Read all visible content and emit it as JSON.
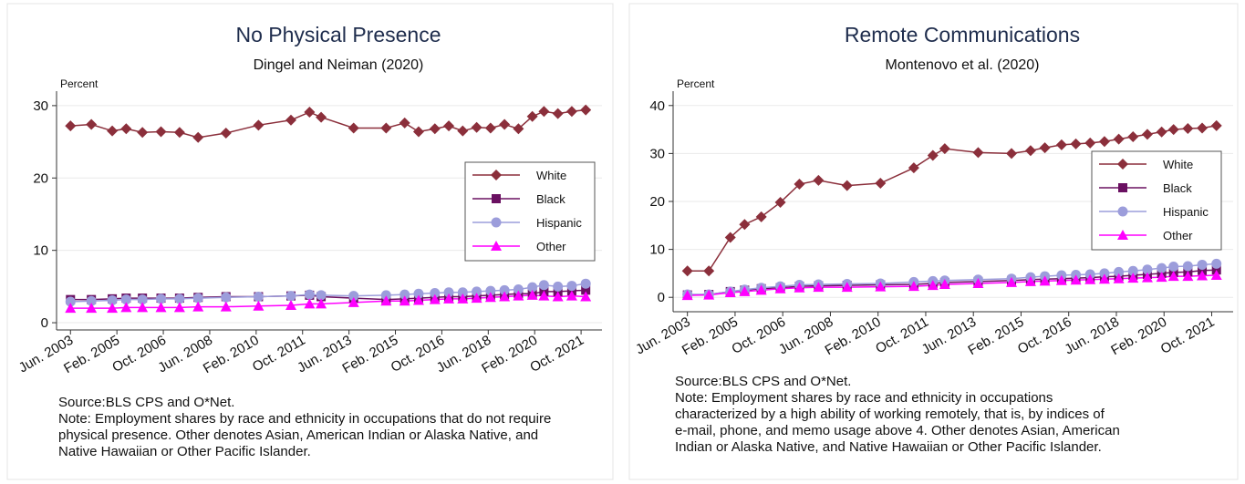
{
  "chart_data": [
    {
      "type": "line",
      "title": "No Physical Presence",
      "subtitle": "Dingel and Neiman (2020)",
      "ylabel": "Percent",
      "x": [
        "2003-06",
        "2004-03",
        "2004-12",
        "2005-06",
        "2006-01",
        "2006-09",
        "2007-05",
        "2008-01",
        "2009-01",
        "2010-03",
        "2011-05",
        "2012-01",
        "2012-06",
        "2013-08",
        "2014-10",
        "2015-06",
        "2015-12",
        "2016-07",
        "2017-01",
        "2017-07",
        "2018-01",
        "2018-07",
        "2019-01",
        "2019-07",
        "2020-01",
        "2020-06",
        "2020-12",
        "2021-06",
        "2021-12"
      ],
      "xlim": [
        "2002-12",
        "2022-07"
      ],
      "xticks": [
        {
          "value": "2003-06",
          "label": "Jun. 2003"
        },
        {
          "value": "2005-02",
          "label": "Feb. 2005"
        },
        {
          "value": "2006-10",
          "label": "Oct. 2006"
        },
        {
          "value": "2008-06",
          "label": "Jun. 2008"
        },
        {
          "value": "2010-02",
          "label": "Feb. 2010"
        },
        {
          "value": "2011-10",
          "label": "Oct. 2011"
        },
        {
          "value": "2013-06",
          "label": "Jun. 2013"
        },
        {
          "value": "2015-02",
          "label": "Feb. 2015"
        },
        {
          "value": "2016-10",
          "label": "Oct. 2016"
        },
        {
          "value": "2018-06",
          "label": "Jun. 2018"
        },
        {
          "value": "2020-02",
          "label": "Feb. 2020"
        },
        {
          "value": "2021-10",
          "label": "Oct. 2021"
        }
      ],
      "ylim": [
        -1,
        32
      ],
      "yticks": [
        0,
        10,
        20,
        30
      ],
      "grid": true,
      "legend": "right",
      "series": [
        {
          "name": "White",
          "color": "#8b2f3b",
          "marker": "diamond",
          "values": [
            27.2,
            27.4,
            26.5,
            26.8,
            26.3,
            26.4,
            26.3,
            25.6,
            26.2,
            27.3,
            28.0,
            29.1,
            28.4,
            26.9,
            26.9,
            27.6,
            26.4,
            26.8,
            27.2,
            26.5,
            27.0,
            26.9,
            27.4,
            26.8,
            28.5,
            29.2,
            28.9,
            29.2,
            29.4
          ]
        },
        {
          "name": "Black",
          "color": "#6a1061",
          "marker": "square",
          "values": [
            3.2,
            3.2,
            3.3,
            3.4,
            3.4,
            3.4,
            3.4,
            3.5,
            3.6,
            3.6,
            3.7,
            3.8,
            3.6,
            3.4,
            3.2,
            3.3,
            3.4,
            3.5,
            3.6,
            3.6,
            3.7,
            3.8,
            3.9,
            4.0,
            4.0,
            4.3,
            4.3,
            4.4,
            4.5
          ]
        },
        {
          "name": "Hispanic",
          "color": "#9c9ddb",
          "marker": "circle",
          "values": [
            2.9,
            3.0,
            3.1,
            3.2,
            3.2,
            3.3,
            3.3,
            3.4,
            3.5,
            3.6,
            3.7,
            3.9,
            3.8,
            3.7,
            3.8,
            3.9,
            4.0,
            4.1,
            4.2,
            4.2,
            4.3,
            4.4,
            4.5,
            4.6,
            4.9,
            5.2,
            5.0,
            5.1,
            5.4
          ]
        },
        {
          "name": "Other",
          "color": "#ff00ff",
          "marker": "triangle",
          "values": [
            2.0,
            2.0,
            2.0,
            2.1,
            2.1,
            2.1,
            2.1,
            2.2,
            2.2,
            2.3,
            2.4,
            2.6,
            2.6,
            2.8,
            3.0,
            3.0,
            3.1,
            3.2,
            3.3,
            3.3,
            3.4,
            3.5,
            3.6,
            3.7,
            3.8,
            3.7,
            3.6,
            3.7,
            3.6
          ]
        }
      ],
      "source": "Source:BLS CPS and O*Net.",
      "note": [
        "Note: Employment shares by race and ethnicity in occupations that do not require",
        "physical presence. Other denotes Asian, American Indian or Alaska Native, and",
        "Native Hawaiian or Other Pacific Islander."
      ]
    },
    {
      "type": "line",
      "title": "Remote Communications",
      "subtitle": "Montenovo et al. (2020)",
      "ylabel": "Percent",
      "x": [
        "2003-06",
        "2004-03",
        "2004-12",
        "2005-06",
        "2006-01",
        "2006-09",
        "2007-05",
        "2008-01",
        "2009-01",
        "2010-03",
        "2011-05",
        "2012-01",
        "2012-06",
        "2013-08",
        "2014-10",
        "2015-06",
        "2015-12",
        "2016-07",
        "2017-01",
        "2017-07",
        "2018-01",
        "2018-07",
        "2019-01",
        "2019-07",
        "2020-01",
        "2020-06",
        "2020-12",
        "2021-06",
        "2021-12"
      ],
      "xlim": [
        "2002-12",
        "2022-07"
      ],
      "xticks": [
        {
          "value": "2003-06",
          "label": "Jun. 2003"
        },
        {
          "value": "2005-02",
          "label": "Feb. 2005"
        },
        {
          "value": "2006-10",
          "label": "Oct. 2006"
        },
        {
          "value": "2008-06",
          "label": "Jun. 2008"
        },
        {
          "value": "2010-02",
          "label": "Feb. 2010"
        },
        {
          "value": "2011-10",
          "label": "Oct. 2011"
        },
        {
          "value": "2013-06",
          "label": "Jun. 2013"
        },
        {
          "value": "2015-02",
          "label": "Feb. 2015"
        },
        {
          "value": "2016-10",
          "label": "Oct. 2016"
        },
        {
          "value": "2018-06",
          "label": "Jun. 2018"
        },
        {
          "value": "2020-02",
          "label": "Feb. 2020"
        },
        {
          "value": "2021-10",
          "label": "Oct. 2021"
        }
      ],
      "ylim": [
        -3,
        43
      ],
      "yticks": [
        0,
        10,
        20,
        30,
        40
      ],
      "grid": true,
      "legend": "right",
      "series": [
        {
          "name": "White",
          "color": "#8b2f3b",
          "marker": "diamond",
          "values": [
            5.5,
            5.5,
            12.5,
            15.2,
            16.8,
            19.8,
            23.6,
            24.4,
            23.3,
            23.8,
            27.0,
            29.6,
            31.0,
            30.2,
            30.0,
            30.6,
            31.2,
            31.8,
            32.0,
            32.2,
            32.5,
            33.0,
            33.5,
            34.0,
            34.5,
            35.0,
            35.2,
            35.3,
            35.8
          ]
        },
        {
          "name": "Black",
          "color": "#6a1061",
          "marker": "square",
          "values": [
            0.5,
            0.6,
            1.2,
            1.5,
            1.8,
            2.0,
            2.3,
            2.4,
            2.5,
            2.6,
            2.7,
            2.9,
            3.1,
            3.3,
            3.5,
            3.7,
            3.8,
            3.9,
            4.0,
            4.1,
            4.3,
            4.4,
            4.6,
            4.8,
            5.0,
            5.2,
            5.3,
            5.6,
            5.7
          ]
        },
        {
          "name": "Hispanic",
          "color": "#9c9ddb",
          "marker": "circle",
          "values": [
            0.6,
            0.6,
            1.2,
            1.6,
            2.0,
            2.3,
            2.6,
            2.7,
            2.8,
            2.9,
            3.2,
            3.4,
            3.5,
            3.7,
            3.9,
            4.2,
            4.4,
            4.6,
            4.7,
            4.8,
            5.0,
            5.3,
            5.5,
            5.8,
            6.1,
            6.4,
            6.5,
            6.8,
            7.0
          ]
        },
        {
          "name": "Other",
          "color": "#ff00ff",
          "marker": "triangle",
          "values": [
            0.4,
            0.5,
            1.0,
            1.2,
            1.5,
            1.8,
            2.0,
            2.1,
            2.1,
            2.2,
            2.3,
            2.5,
            2.7,
            2.9,
            3.1,
            3.3,
            3.4,
            3.5,
            3.6,
            3.7,
            3.8,
            3.9,
            4.0,
            4.1,
            4.2,
            4.4,
            4.4,
            4.5,
            4.6
          ]
        }
      ],
      "source": "Source:BLS CPS and O*Net.",
      "note": [
        "Note: Employment shares by race and ethnicity in occupations",
        "characterized by a high ability of working remotely, that is, by indices of",
        "e-mail, phone, and memo usage above 4. Other denotes Asian, American",
        "Indian or Alaska Native, and Native Hawaiian or Other Pacific Islander."
      ]
    }
  ]
}
